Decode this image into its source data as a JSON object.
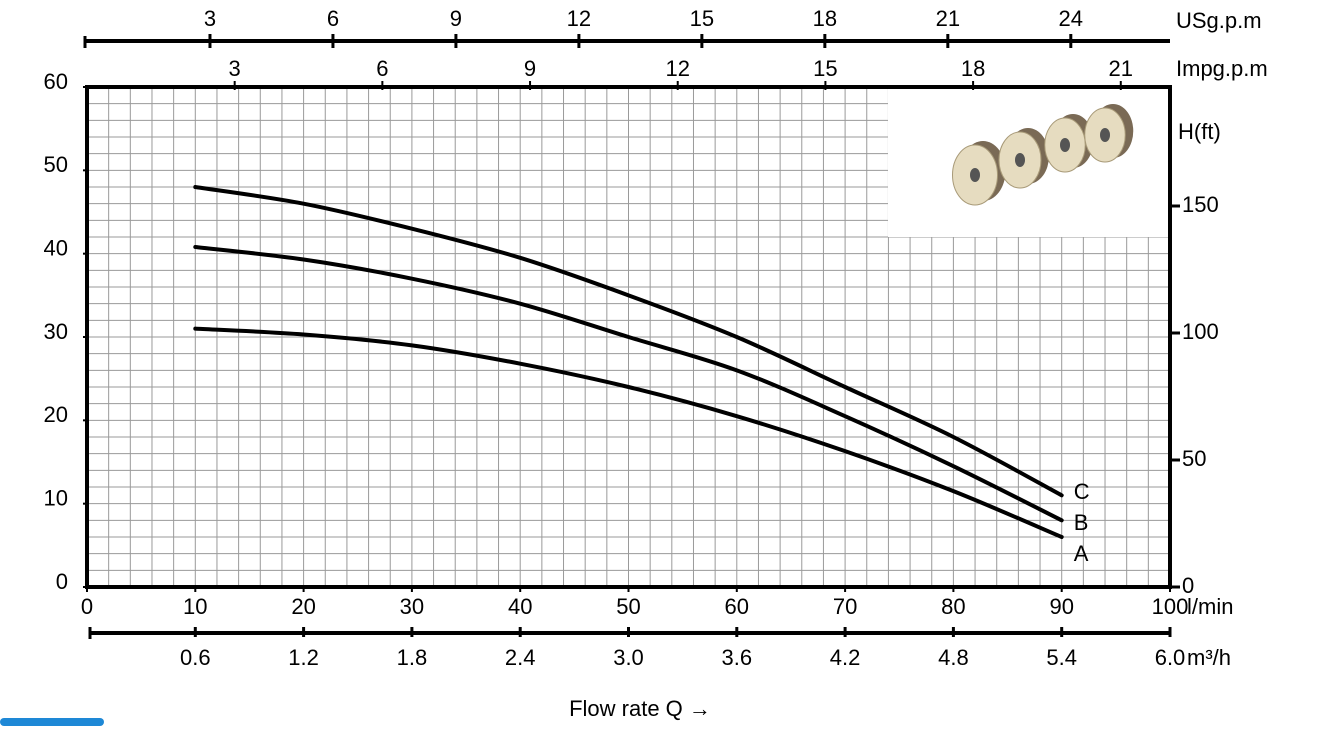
{
  "chart_data": {
    "type": "line",
    "xlabel": "Flow rate Q  →",
    "xunit": "l/min",
    "xlim": [
      0,
      100
    ],
    "xticks": [
      0,
      10,
      20,
      30,
      40,
      50,
      60,
      70,
      80,
      90,
      100
    ],
    "ylim": [
      0,
      60
    ],
    "yticks": [
      0,
      10,
      20,
      30,
      40,
      50,
      60
    ],
    "y2label": "H(ft)",
    "y2lim": [
      0,
      196.85
    ],
    "y2ticks": [
      0,
      50,
      100,
      150
    ],
    "grid": {
      "x_step": 2,
      "y_step": 2
    },
    "top_axes": [
      {
        "label": "USg.p.m",
        "lim": [
          0,
          26.42
        ],
        "ticks": [
          3,
          6,
          9,
          12,
          15,
          18,
          21,
          24
        ]
      },
      {
        "label": "Impg.p.m",
        "lim": [
          0,
          22
        ],
        "ticks": [
          3,
          6,
          9,
          12,
          15,
          18,
          21
        ]
      }
    ],
    "bottom_axis2": {
      "label": "m³/h",
      "lim": [
        0,
        6
      ],
      "ticks": [
        0.6,
        1.2,
        1.8,
        2.4,
        {
          "value": 3,
          "label": "3.0"
        },
        3.6,
        4.2,
        4.8,
        5.4,
        {
          "value": 6,
          "label": "6.0"
        }
      ]
    },
    "x": [
      10,
      20,
      30,
      40,
      50,
      60,
      70,
      80,
      90
    ],
    "series": [
      {
        "name": "A",
        "color": "#000000",
        "label_color": "#e8891c",
        "values": [
          31,
          30.3,
          29,
          26.8,
          24,
          20.5,
          16.3,
          11.5,
          6
        ]
      },
      {
        "name": "B",
        "color": "#000000",
        "label_color": "#e8891c",
        "values": [
          40.8,
          39.3,
          37,
          34,
          30,
          26,
          20.5,
          14.5,
          8
        ]
      },
      {
        "name": "C",
        "color": "#000000",
        "label_color": "#e8891c",
        "values": [
          48,
          46,
          43,
          39.5,
          35,
          30,
          24,
          18,
          11
        ]
      }
    ]
  }
}
